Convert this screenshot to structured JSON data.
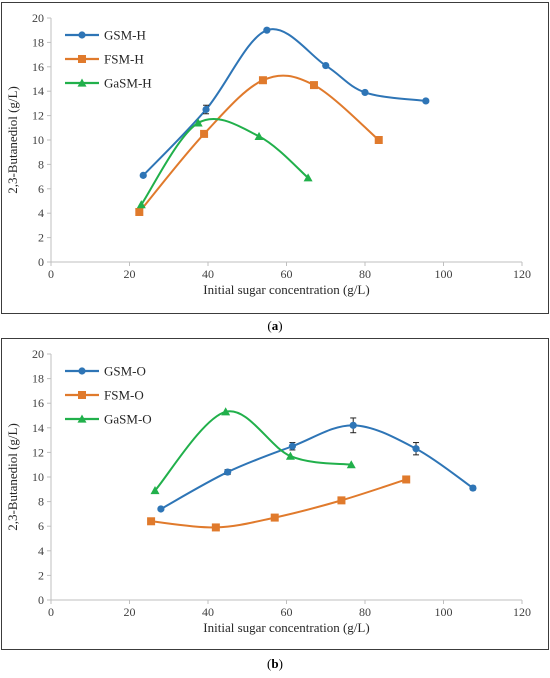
{
  "chart_data": [
    {
      "type": "line",
      "panel_label": "(a)",
      "xlabel": "Initial sugar concentration (g/L)",
      "ylabel": "2,3-Butanediol (g/L)",
      "xlim": [
        0,
        120
      ],
      "ylim": [
        0,
        20
      ],
      "xticks": [
        "0",
        "20",
        "40",
        "60",
        "80",
        "100",
        "120"
      ],
      "yticks": [
        "0",
        "2",
        "4",
        "6",
        "8",
        "10",
        "12",
        "14",
        "16",
        "18",
        "20"
      ],
      "grid": false,
      "legend_position": "top-left",
      "series": [
        {
          "name": "GSM-H",
          "color": "#2e75b6",
          "marker": "circle",
          "x": [
            23.5,
            39.5,
            55,
            70,
            80,
            95.5
          ],
          "y": [
            7.1,
            12.5,
            19.0,
            16.1,
            13.9,
            13.2
          ],
          "err": [
            0,
            0.35,
            0,
            0,
            0,
            0
          ]
        },
        {
          "name": "FSM-H",
          "color": "#e07a2c",
          "marker": "square",
          "x": [
            22.5,
            39,
            54,
            67,
            83.5
          ],
          "y": [
            4.1,
            10.5,
            14.9,
            14.5,
            10.0
          ],
          "err": [
            0,
            0,
            0,
            0,
            0
          ]
        },
        {
          "name": "GaSM-H",
          "color": "#21b04b",
          "marker": "triangle",
          "x": [
            23,
            37.5,
            53,
            65.5
          ],
          "y": [
            4.7,
            11.4,
            10.3,
            6.9
          ],
          "err": [
            0,
            0,
            0,
            0
          ]
        }
      ]
    },
    {
      "type": "line",
      "panel_label": "(b)",
      "xlabel": "Initial sugar concentration (g/L)",
      "ylabel": "2,3-Butanediol (g/L)",
      "xlim": [
        0,
        120
      ],
      "ylim": [
        0,
        20
      ],
      "xticks": [
        "0",
        "20",
        "40",
        "60",
        "80",
        "100",
        "120"
      ],
      "yticks": [
        "0",
        "2",
        "4",
        "6",
        "8",
        "10",
        "12",
        "14",
        "16",
        "18",
        "20"
      ],
      "grid": false,
      "legend_position": "top-left",
      "series": [
        {
          "name": "GSM-O",
          "color": "#2e75b6",
          "marker": "circle",
          "x": [
            28,
            45,
            61.5,
            77,
            93,
            107.5
          ],
          "y": [
            7.4,
            10.4,
            12.5,
            14.2,
            12.3,
            9.1
          ],
          "err": [
            0,
            0.2,
            0.3,
            0.6,
            0.5,
            0.15
          ]
        },
        {
          "name": "FSM-O",
          "color": "#e07a2c",
          "marker": "square",
          "x": [
            25.5,
            42,
            57,
            74,
            90.5
          ],
          "y": [
            6.4,
            5.9,
            6.7,
            8.1,
            9.8
          ],
          "err": [
            0,
            0,
            0,
            0,
            0
          ]
        },
        {
          "name": "GaSM-O",
          "color": "#21b04b",
          "marker": "triangle",
          "x": [
            26.5,
            44.5,
            61,
            76.5
          ],
          "y": [
            8.9,
            15.3,
            11.7,
            11.0
          ],
          "err": [
            0,
            0,
            0,
            0
          ]
        }
      ]
    }
  ]
}
